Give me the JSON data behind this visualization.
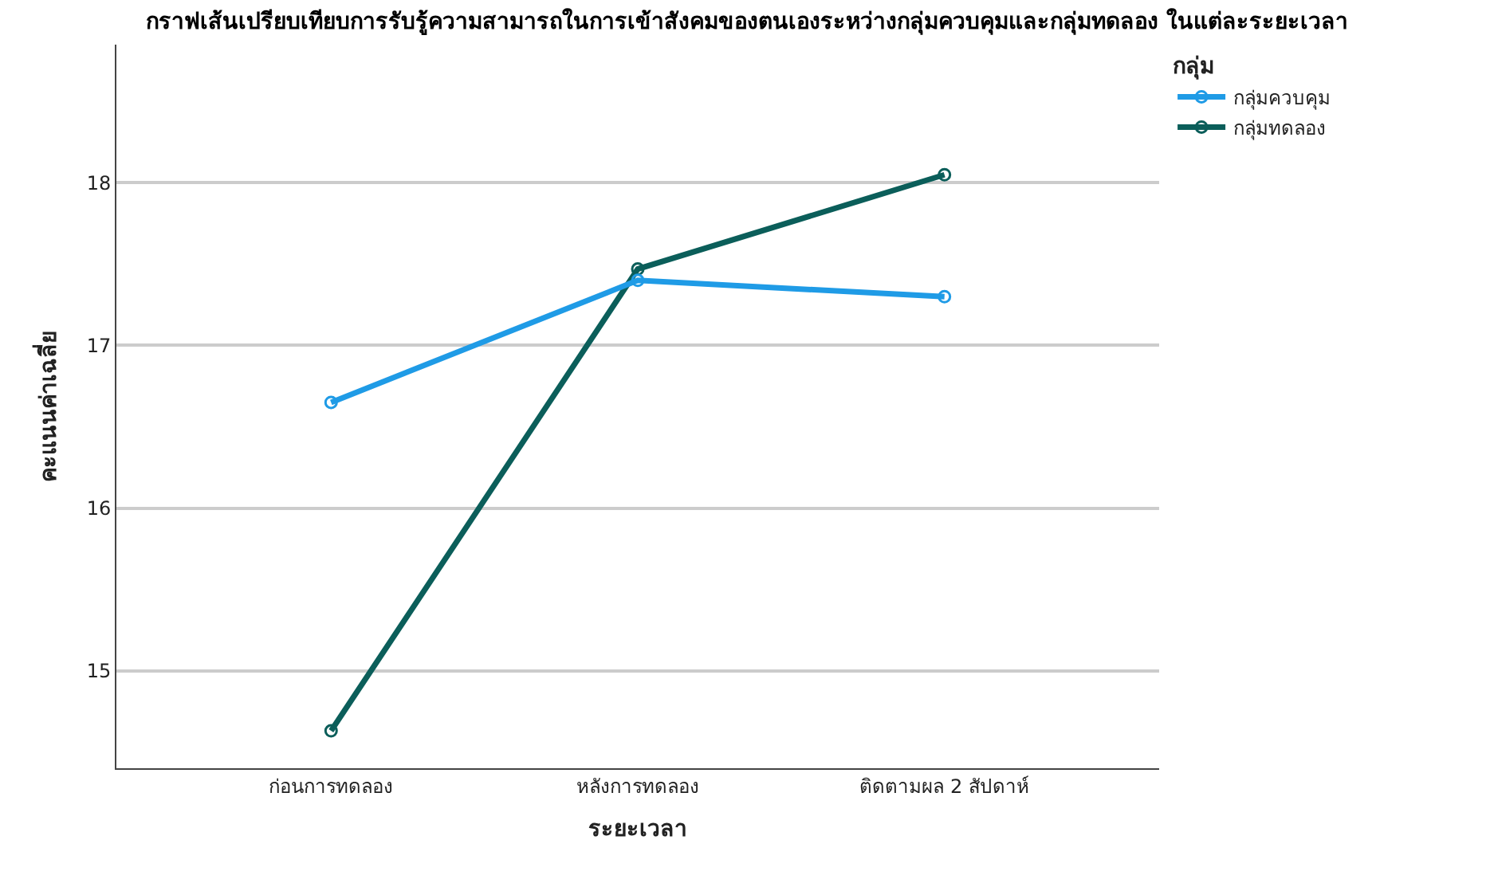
{
  "chart_data": {
    "type": "line",
    "title": "กราฟเส้นเปรียบเทียบการรับรู้ความสามารถในการเข้าสังคมของตนเองระหว่างกลุ่มควบคุมและกลุ่มทดลอง ในแต่ละระยะเวลา",
    "xlabel": "ระยะเวลา",
    "ylabel": "คะแนนค่าเฉลี่ย",
    "legend_title": "กลุ่ม",
    "categories": [
      "ก่อนการทดลอง",
      "หลังการทดลอง",
      "ติดตามผล 2 สัปดาห์"
    ],
    "series": [
      {
        "name": "กลุ่มควบคุม",
        "color": "#1f9be6",
        "values": [
          16.65,
          17.4,
          17.3
        ]
      },
      {
        "name": "กลุ่มทดลอง",
        "color": "#0b5e5a",
        "values": [
          14.63,
          17.47,
          18.05
        ]
      }
    ],
    "ylim": [
      14.4,
      18.85
    ],
    "yticks": [
      15,
      16,
      17,
      18
    ],
    "grid": "y",
    "legend": "top right",
    "marker": "circle",
    "line_style": "solid"
  }
}
